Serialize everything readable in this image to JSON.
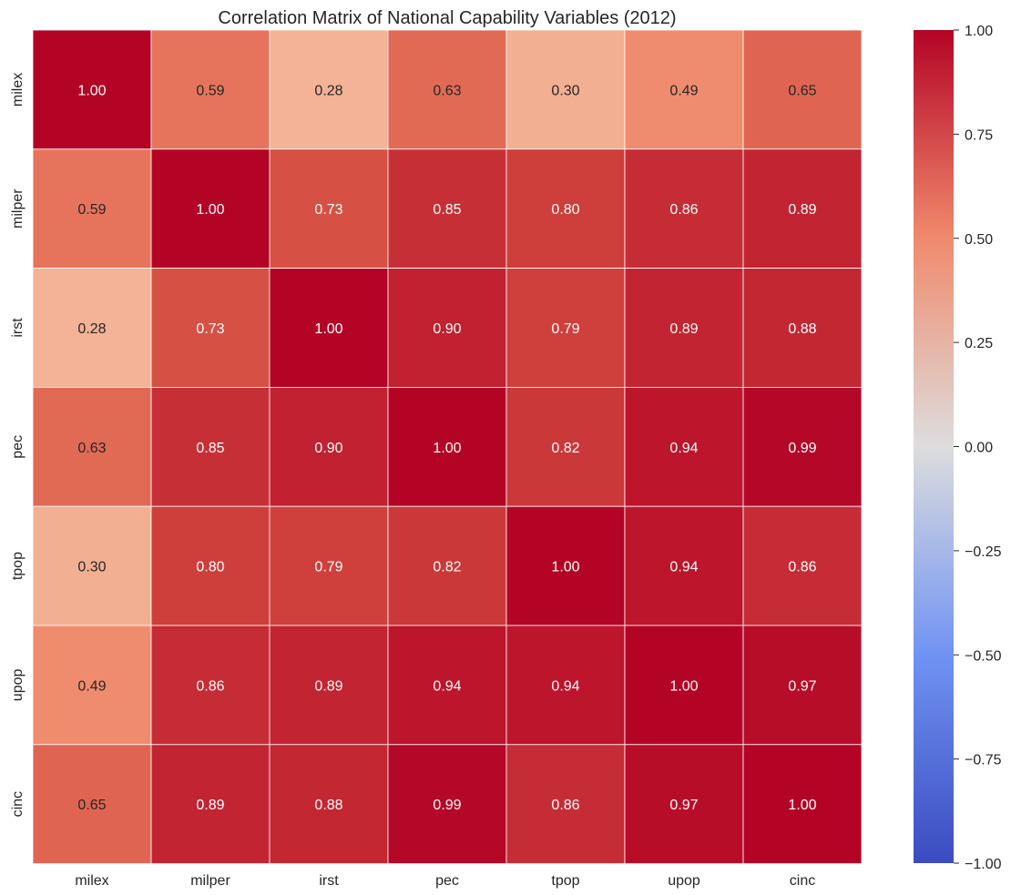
{
  "chart_data": {
    "type": "heatmap",
    "title": "Correlation Matrix of National Capability Variables (2012)",
    "xlabel": "",
    "ylabel": "",
    "x_categories": [
      "milex",
      "milper",
      "irst",
      "pec",
      "tpop",
      "upop",
      "cinc"
    ],
    "y_categories": [
      "milex",
      "milper",
      "irst",
      "pec",
      "tpop",
      "upop",
      "cinc"
    ],
    "values": [
      [
        1.0,
        0.59,
        0.28,
        0.63,
        0.3,
        0.49,
        0.65
      ],
      [
        0.59,
        1.0,
        0.73,
        0.85,
        0.8,
        0.86,
        0.89
      ],
      [
        0.28,
        0.73,
        1.0,
        0.9,
        0.79,
        0.89,
        0.88
      ],
      [
        0.63,
        0.85,
        0.9,
        1.0,
        0.82,
        0.94,
        0.99
      ],
      [
        0.3,
        0.8,
        0.79,
        0.82,
        1.0,
        0.94,
        0.86
      ],
      [
        0.49,
        0.86,
        0.89,
        0.94,
        0.94,
        1.0,
        0.97
      ],
      [
        0.65,
        0.89,
        0.88,
        0.99,
        0.86,
        0.97,
        1.0
      ]
    ],
    "value_format": "0.00",
    "colormap": "coolwarm",
    "vmin": -1.0,
    "vmax": 1.0,
    "colorbar_ticks": [
      "1.00",
      "0.75",
      "0.50",
      "0.25",
      "0.00",
      "−0.25",
      "−0.50",
      "−0.75",
      "−1.00"
    ],
    "colorbar_tick_values": [
      1.0,
      0.75,
      0.5,
      0.25,
      0.0,
      -0.25,
      -0.5,
      -0.75,
      -1.0
    ],
    "grid": false,
    "legend": "colorbar-right"
  }
}
